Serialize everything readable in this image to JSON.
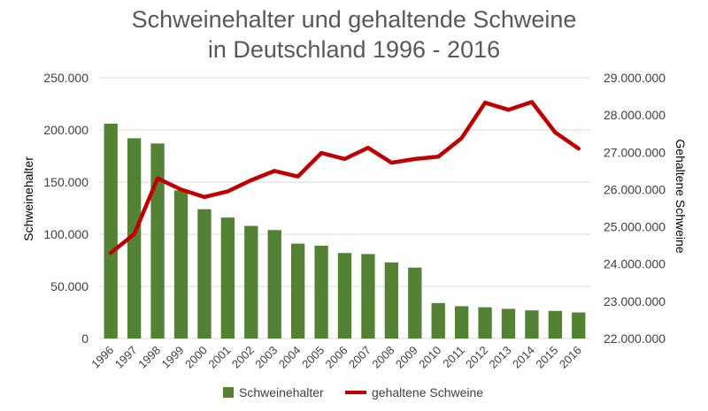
{
  "title_line1": "Schweinehalter und gehaltende Schweine",
  "title_line2": "in Deutschland 1996 - 2016",
  "colors": {
    "bars": "#548235",
    "line": "#C00000",
    "grid": "#D9D9D9",
    "text": "#404040",
    "title": "#595959"
  },
  "chart_data": {
    "type": "bar",
    "title": "Schweinehalter und gehaltende Schweine in Deutschland 1996 - 2016",
    "xlabel": "",
    "ylabel": "Schweinehalter",
    "y2label": "Gehaltene Schweine",
    "categories": [
      "1996",
      "1997",
      "1998",
      "1999",
      "2000",
      "2001",
      "2002",
      "2003",
      "2004",
      "2005",
      "2006",
      "2007",
      "2008",
      "2009",
      "2010",
      "2011",
      "2012",
      "2013",
      "2014",
      "2015",
      "2016"
    ],
    "series": [
      {
        "name": "Schweinehalter",
        "type": "bar",
        "axis": "left",
        "values": [
          206000,
          192000,
          187000,
          142000,
          124000,
          116000,
          108000,
          104000,
          91000,
          89000,
          82000,
          81000,
          73000,
          68000,
          34000,
          31000,
          30000,
          28500,
          27000,
          26500,
          25000
        ]
      },
      {
        "name": "gehaltene Schweine",
        "type": "line",
        "axis": "right",
        "values": [
          24300000,
          24800000,
          26300000,
          26000000,
          25800000,
          25950000,
          26250000,
          26500000,
          26350000,
          26980000,
          26820000,
          27120000,
          26720000,
          26820000,
          26880000,
          27380000,
          28330000,
          28140000,
          28350000,
          27530000,
          27100000
        ]
      }
    ],
    "ylim": [
      0,
      250000
    ],
    "y2lim": [
      22000000,
      29000000
    ],
    "yticks": [
      "0",
      "50.000",
      "100.000",
      "150.000",
      "200.000",
      "250.000"
    ],
    "y2ticks": [
      "22.000.000",
      "23.000.000",
      "24.000.000",
      "25.000.000",
      "26.000.000",
      "27.000.000",
      "28.000.000",
      "29.000.000"
    ],
    "grid": true,
    "legend": "bottom"
  }
}
